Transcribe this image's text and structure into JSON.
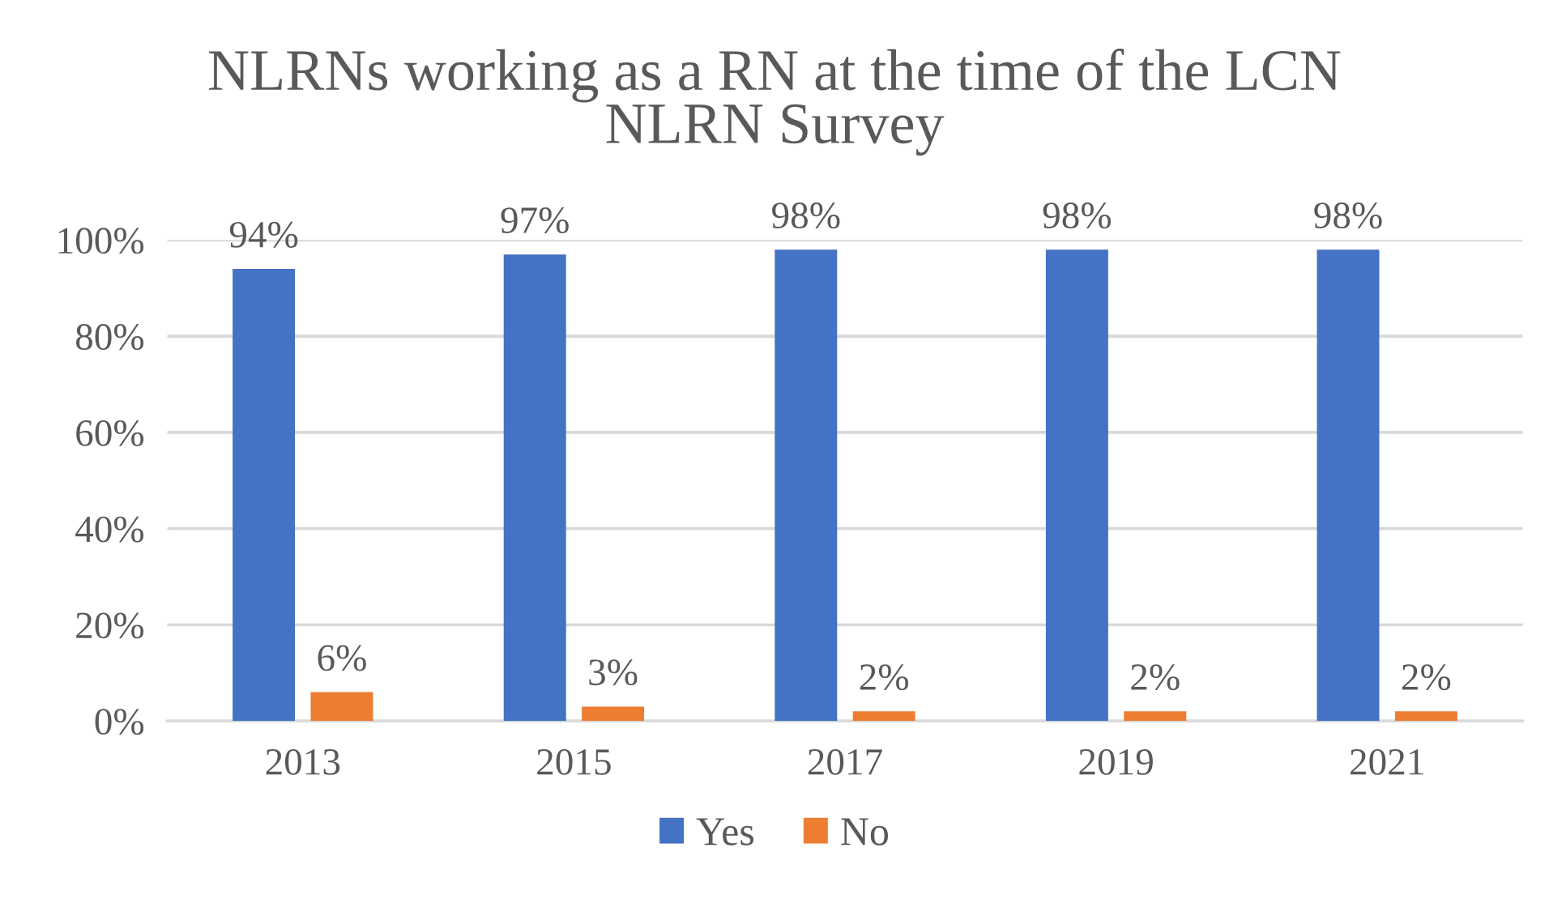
{
  "chart_data": {
    "type": "bar",
    "title": "NLRNs working as a RN at the time of the LCN NLRN Survey",
    "categories": [
      "2013",
      "2015",
      "2017",
      "2019",
      "2021"
    ],
    "series": [
      {
        "name": "Yes",
        "color": "#4472c4",
        "values": [
          94,
          97,
          98,
          98,
          98
        ],
        "value_labels": [
          "94%",
          "97%",
          "98%",
          "98%",
          "98%"
        ]
      },
      {
        "name": "No",
        "color": "#ed7d31",
        "values": [
          6,
          3,
          2,
          2,
          2
        ],
        "value_labels": [
          "6%",
          "3%",
          "2%",
          "2%",
          "2%"
        ]
      }
    ],
    "ylim": [
      0,
      100
    ],
    "yticks": [
      {
        "value": 0,
        "label": "0%"
      },
      {
        "value": 20,
        "label": "20%"
      },
      {
        "value": 40,
        "label": "40%"
      },
      {
        "value": 60,
        "label": "60%"
      },
      {
        "value": 80,
        "label": "80%"
      },
      {
        "value": 100,
        "label": "100%"
      }
    ],
    "grid": "y",
    "legend": "bottom"
  }
}
